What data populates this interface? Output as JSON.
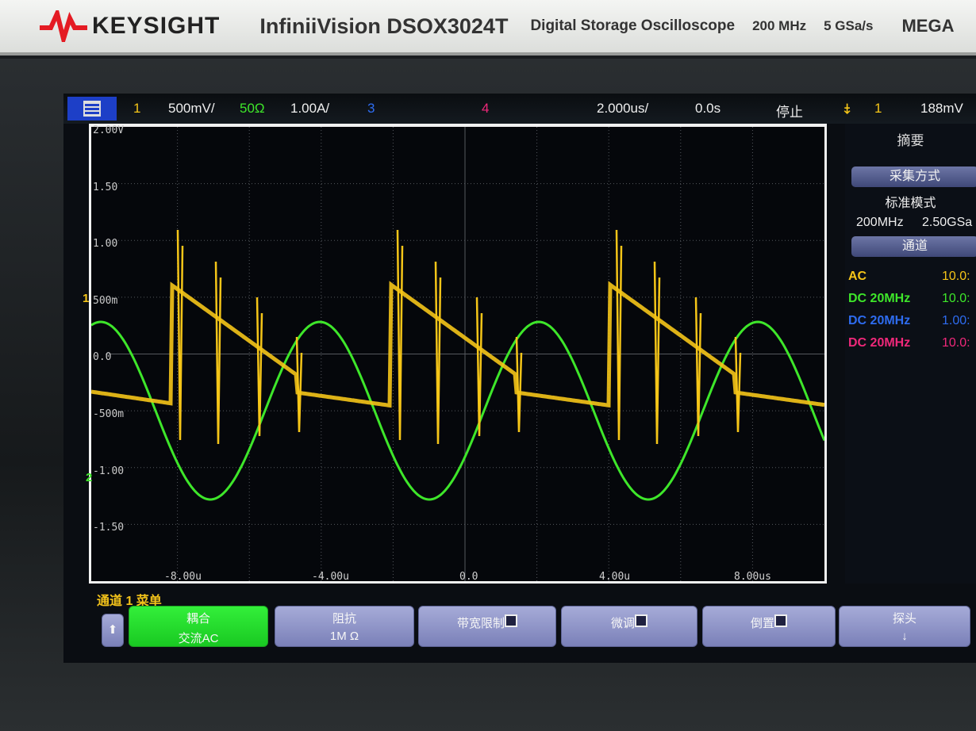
{
  "brand": {
    "company": "KEYSIGHT",
    "model": "InfiniiVision DSOX3024T",
    "description": "Digital Storage Oscilloscope",
    "bandwidth": "200 MHz",
    "sample_rate": "5 GSa/s",
    "badge": "MEGA",
    "logo_color": "#e41b23"
  },
  "status": {
    "ch1_label": "1",
    "ch1_scale": "500mV/",
    "ch2_impedance": "50Ω",
    "ch2_scale": "1.00A/",
    "ch3_label": "3",
    "ch4_label": "4",
    "timebase": "2.000us/",
    "delay": "0.0s",
    "run_state": "停止",
    "trigger_icon": "trigger-edge-icon",
    "trigger_source": "1",
    "trigger_level": "188mV"
  },
  "graticule": {
    "y_labels": [
      "2.00V",
      "1.50",
      "1.00",
      "500m",
      "0.0",
      "-500m",
      "-1.00",
      "-1.50"
    ],
    "x_labels": [
      "-8.00u",
      "-4.00u",
      "0.0",
      "4.00u",
      "8.00us"
    ],
    "ch1_marker": "1",
    "ch2_marker": "2"
  },
  "side_panel": {
    "title": "摘要",
    "acq_header": "采集方式",
    "acq_mode": "标准模式",
    "acq_bw": "200MHz",
    "acq_rate": "2.50GSa",
    "chan_header": "通道",
    "channels": [
      {
        "coupling": "AC",
        "probe": "10.0:",
        "color": "#f5c518"
      },
      {
        "coupling": "DC 20MHz",
        "probe": "10.0:",
        "color": "#3ee62a"
      },
      {
        "coupling": "DC 20MHz",
        "probe": "1.00:",
        "color": "#2e6cf0"
      },
      {
        "coupling": "DC 20MHz",
        "probe": "10.0:",
        "color": "#f0287a"
      }
    ]
  },
  "softkeys": {
    "menu_title": "通道 1 菜单",
    "keys": [
      {
        "label": "耦合",
        "value": "交流AC",
        "active": true
      },
      {
        "label": "阻抗",
        "value": "1M Ω"
      },
      {
        "label": "带宽限制",
        "checked": false
      },
      {
        "label": "微调",
        "checked": false
      },
      {
        "label": "倒置",
        "checked": false
      },
      {
        "label": "探头",
        "value": "↓"
      }
    ]
  },
  "colors": {
    "ch1": "#f5c518",
    "ch2": "#3ee62a",
    "ch3": "#2e6cf0",
    "ch4": "#f0287a"
  }
}
